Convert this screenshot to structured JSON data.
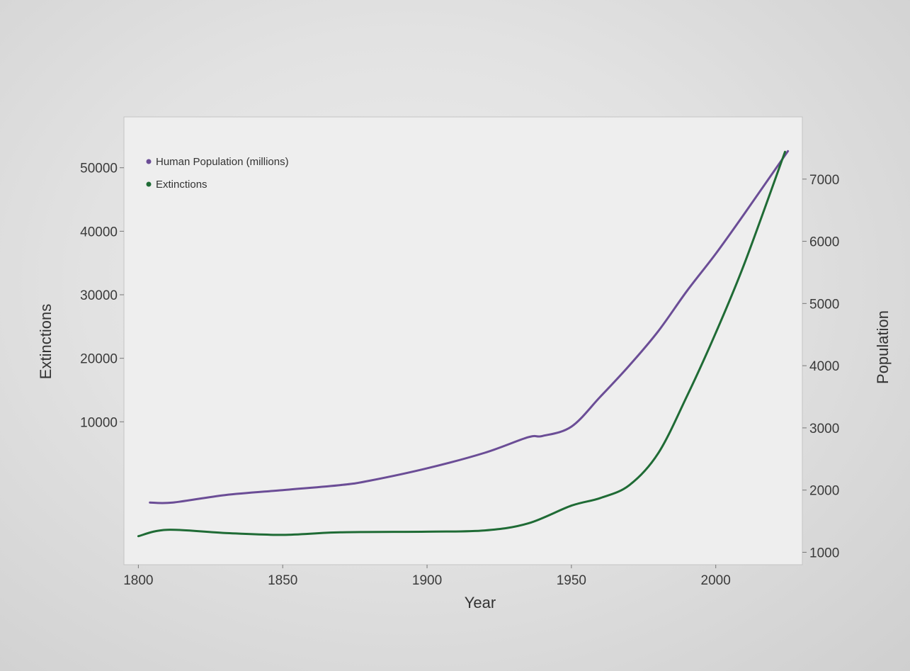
{
  "chart_data": {
    "type": "line",
    "title": "",
    "xlabel": "Year",
    "ylabel_left": "Extinctions",
    "ylabel_right": "Population",
    "xlim": [
      1795,
      2030
    ],
    "ylim_left": [
      -12500,
      58000
    ],
    "ylim_right": [
      800,
      8000
    ],
    "x_ticks": [
      1800,
      1850,
      1900,
      1950,
      2000
    ],
    "y_ticks_left": [
      10000,
      20000,
      30000,
      40000,
      50000
    ],
    "y_ticks_right": [
      1000,
      2000,
      3000,
      4000,
      5000,
      6000,
      7000
    ],
    "grid": false,
    "legend_position": "top-left",
    "series": [
      {
        "name": "Human Population (millions)",
        "axis": "right",
        "color": "#6b4d96",
        "x": [
          1804,
          1812,
          1830,
          1850,
          1870,
          1880,
          1900,
          1920,
          1935,
          1940,
          1950,
          1960,
          1970,
          1980,
          1990,
          2000,
          2010,
          2025
        ],
        "y": [
          1800,
          1800,
          1920,
          2000,
          2080,
          2150,
          2350,
          2600,
          2850,
          2870,
          3020,
          3500,
          4000,
          4550,
          5200,
          5800,
          6450,
          7450
        ]
      },
      {
        "name": "Extinctions",
        "axis": "left",
        "color": "#1f6b35",
        "x": [
          1800,
          1810,
          1830,
          1850,
          1870,
          1900,
          1920,
          1935,
          1950,
          1960,
          1970,
          1980,
          1990,
          2000,
          2010,
          2024
        ],
        "y": [
          -8000,
          -7000,
          -7500,
          -7800,
          -7400,
          -7300,
          -7100,
          -6000,
          -3200,
          -2000,
          0,
          5000,
          14000,
          24000,
          35000,
          52500
        ]
      }
    ]
  }
}
